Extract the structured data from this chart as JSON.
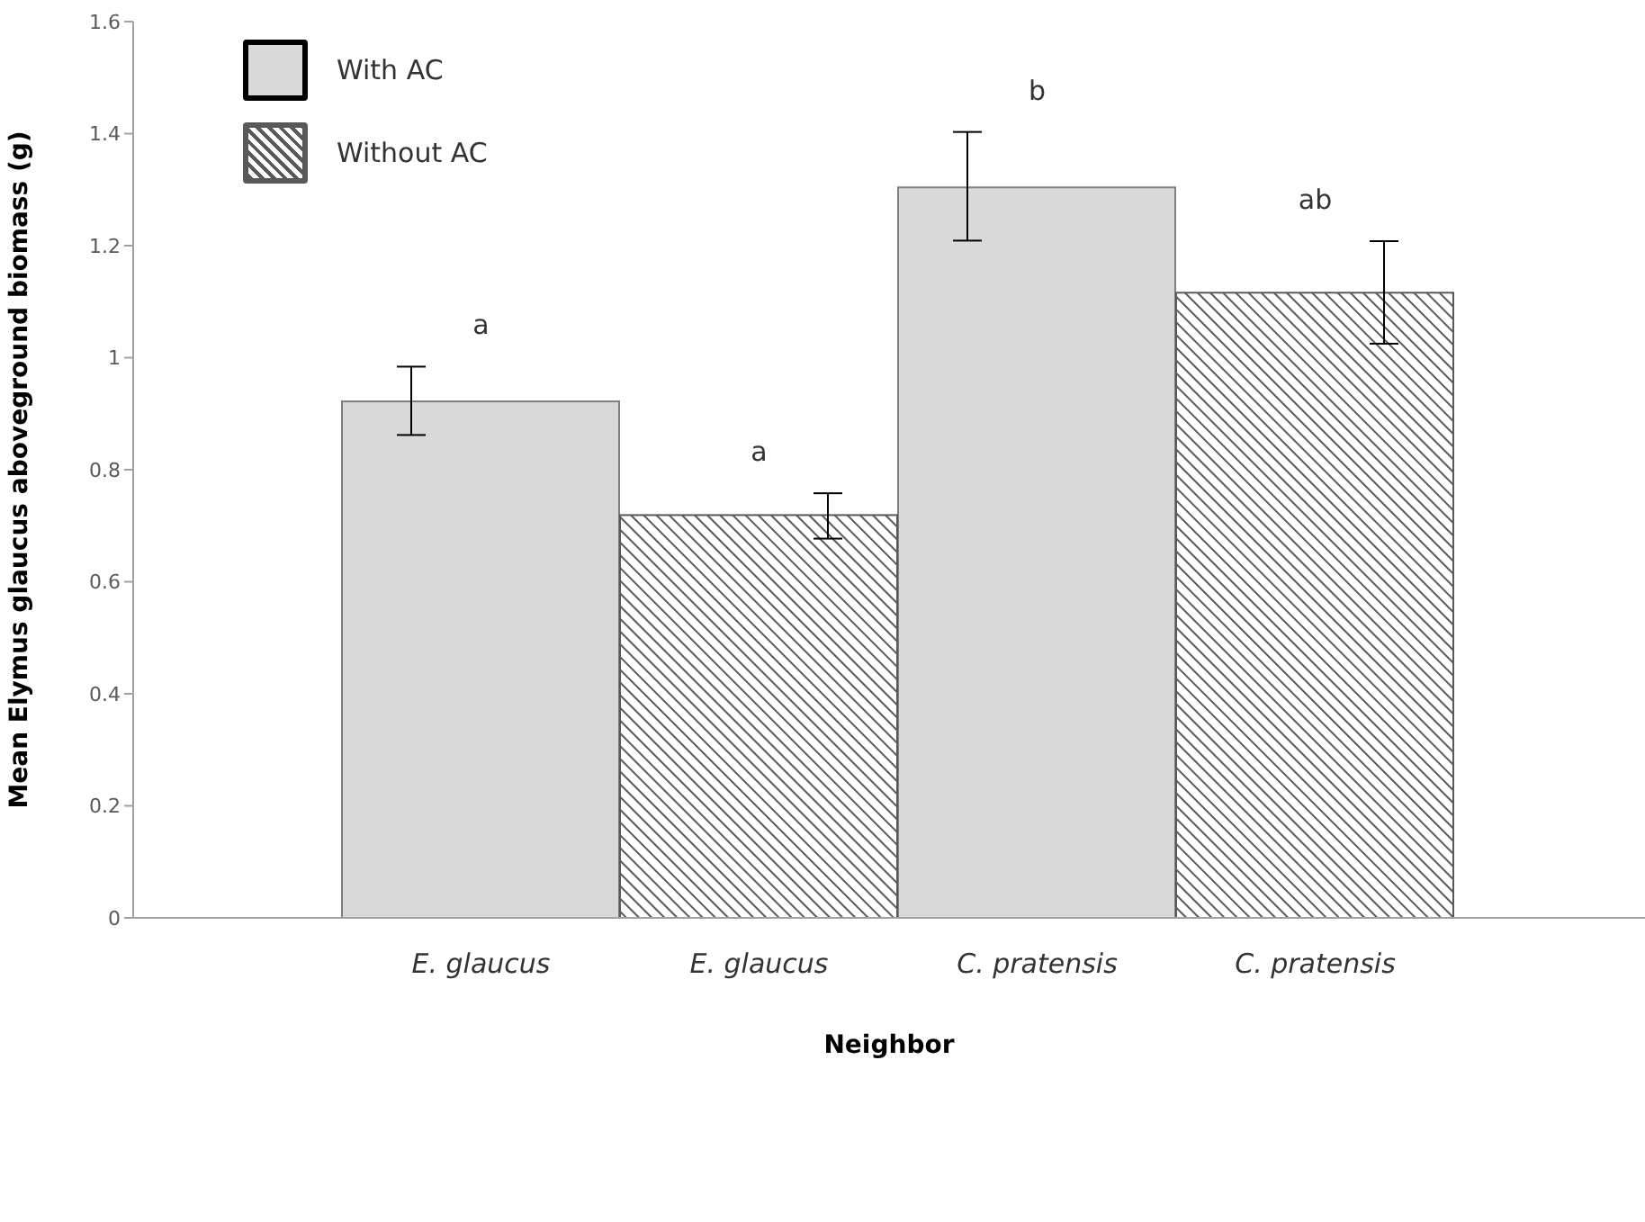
{
  "chart_data": {
    "type": "bar",
    "xlabel": "Neighbor",
    "ylabel": "Mean Elymus glaucus aboveground biomass (g)",
    "categories": [
      "E. glaucus",
      "E. glaucus",
      "C. pratensis",
      "C. pratensis"
    ],
    "series": [
      {
        "name": "With AC",
        "color": "#d9d9d9",
        "values": [
          0.922,
          null,
          1.304,
          null
        ],
        "errors": [
          [
            0.862,
            0.984
          ],
          null,
          [
            1.209,
            1.403
          ],
          null
        ]
      },
      {
        "name": "Without AC",
        "color": "#595959",
        "values": [
          null,
          0.719,
          null,
          1.116
        ],
        "errors": [
          null,
          [
            0.677,
            0.758
          ],
          null,
          [
            1.025,
            1.208
          ]
        ]
      }
    ],
    "ylim": [
      0,
      1.6
    ],
    "yticks": [
      0,
      0.2,
      0.4,
      0.6,
      0.8,
      1,
      1.2,
      1.4,
      1.6
    ],
    "grid": false,
    "legend": "top left",
    "annotations": [
      "a",
      "a",
      "b",
      "ab"
    ]
  }
}
